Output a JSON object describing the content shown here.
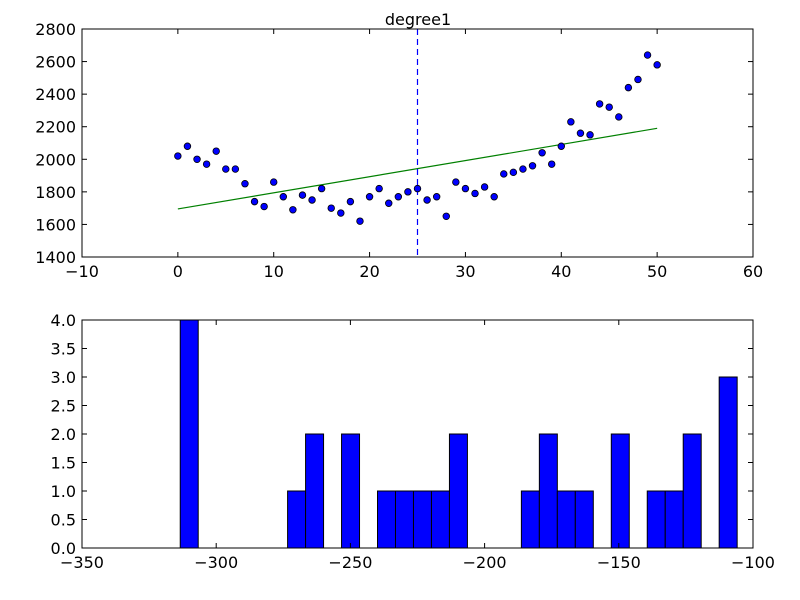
{
  "chart_data": [
    {
      "type": "scatter",
      "title": "degree1",
      "xlim": [
        -10,
        60
      ],
      "ylim": [
        1400,
        2800
      ],
      "xticks": [
        -10,
        0,
        10,
        20,
        30,
        40,
        50,
        60
      ],
      "yticks": [
        1400,
        1600,
        1800,
        2000,
        2200,
        2400,
        2600,
        2800
      ],
      "grid": false,
      "scatter": {
        "x": [
          0,
          1,
          2,
          3,
          4,
          5,
          6,
          7,
          8,
          9,
          10,
          11,
          12,
          13,
          14,
          15,
          16,
          17,
          18,
          19,
          20,
          21,
          22,
          23,
          24,
          25,
          26,
          27,
          28,
          29,
          30,
          31,
          32,
          33,
          34,
          35,
          36,
          37,
          38,
          39,
          40,
          41,
          42,
          43,
          44,
          45,
          46,
          47,
          48,
          49,
          50
        ],
        "y": [
          2020,
          2080,
          2000,
          1970,
          2050,
          1940,
          1940,
          1850,
          1740,
          1710,
          1860,
          1770,
          1690,
          1780,
          1750,
          1820,
          1700,
          1670,
          1740,
          1620,
          1770,
          1820,
          1730,
          1770,
          1800,
          1820,
          1750,
          1770,
          1650,
          1860,
          1820,
          1790,
          1830,
          1770,
          1910,
          1920,
          1940,
          1960,
          2040,
          1970,
          2080,
          2230,
          2160,
          2150,
          2340,
          2320,
          2260,
          2440,
          2490,
          2640,
          2580
        ],
        "color": "#0000ff"
      },
      "fit_line": {
        "x": [
          0,
          50
        ],
        "y": [
          1695,
          2190
        ],
        "color": "#008000"
      },
      "vline": {
        "x": 25,
        "color": "#0000ff",
        "style": "dashed"
      }
    },
    {
      "type": "bar",
      "xlim": [
        -350,
        -100
      ],
      "ylim": [
        0,
        4.0
      ],
      "xticks": [
        -350,
        -300,
        -250,
        -200,
        -150,
        -100
      ],
      "yticks": [
        0.0,
        0.5,
        1.0,
        1.5,
        2.0,
        2.5,
        3.0,
        3.5,
        4.0
      ],
      "ytick_labels": [
        "0.0",
        "0.5",
        "1.0",
        "1.5",
        "2.0",
        "2.5",
        "3.0",
        "3.5",
        "4.0"
      ],
      "grid": false,
      "bar_color": "#0000ff",
      "bins": [
        {
          "start": -313.4,
          "end": -306.7,
          "count": 4
        },
        {
          "start": -273.4,
          "end": -266.7,
          "count": 1
        },
        {
          "start": -266.7,
          "end": -260.0,
          "count": 2
        },
        {
          "start": -253.3,
          "end": -246.6,
          "count": 2
        },
        {
          "start": -239.9,
          "end": -233.2,
          "count": 1
        },
        {
          "start": -233.2,
          "end": -226.5,
          "count": 1
        },
        {
          "start": -226.5,
          "end": -219.8,
          "count": 1
        },
        {
          "start": -219.8,
          "end": -213.1,
          "count": 1
        },
        {
          "start": -213.1,
          "end": -206.4,
          "count": 2
        },
        {
          "start": -186.3,
          "end": -179.6,
          "count": 1
        },
        {
          "start": -179.6,
          "end": -172.9,
          "count": 2
        },
        {
          "start": -172.9,
          "end": -166.2,
          "count": 1
        },
        {
          "start": -166.2,
          "end": -159.5,
          "count": 1
        },
        {
          "start": -152.8,
          "end": -146.1,
          "count": 2
        },
        {
          "start": -139.4,
          "end": -132.7,
          "count": 1
        },
        {
          "start": -132.7,
          "end": -126.0,
          "count": 1
        },
        {
          "start": -126.0,
          "end": -119.3,
          "count": 2
        },
        {
          "start": -112.6,
          "end": -105.9,
          "count": 3
        }
      ]
    }
  ]
}
